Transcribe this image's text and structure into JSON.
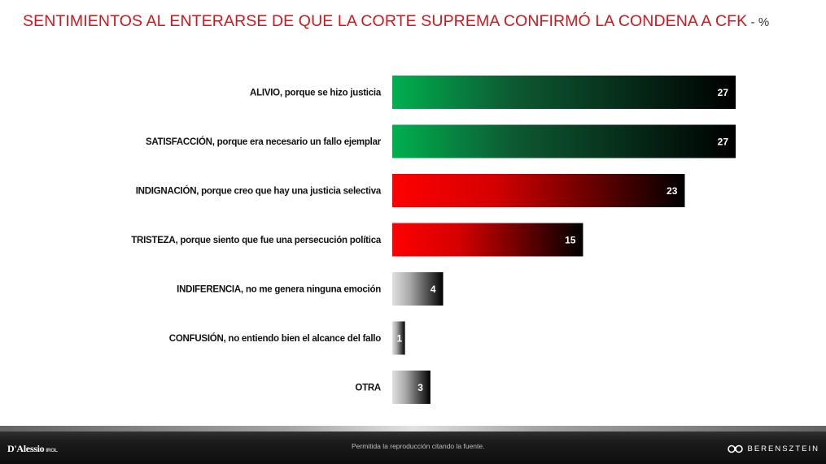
{
  "title": {
    "text": "SENTIMIENTOS AL ENTERARSE DE QUE LA CORTE SUPREMA CONFIRMÓ LA CONDENA A CFK",
    "unit": " - %"
  },
  "chart_data": {
    "type": "bar",
    "orientation": "horizontal",
    "categories": [
      "ALIVIO, porque se hizo justicia",
      "SATISFACCIÓN, porque era necesario un fallo ejemplar",
      "INDIGNACIÓN, porque creo que hay una justicia selectiva",
      "TRISTEZA, porque siento que fue una persecución política",
      "INDIFERENCIA, no me genera ninguna emoción",
      "CONFUSIÓN, no entiendo bien el alcance del fallo",
      "OTRA"
    ],
    "values": [
      27,
      27,
      23,
      15,
      4,
      1,
      3
    ],
    "value_labels": [
      "27",
      "27",
      "23",
      "15",
      "4",
      "1",
      "3"
    ],
    "bar_groups": [
      "green",
      "green",
      "red",
      "red",
      "gray",
      "gray",
      "gray"
    ],
    "colors": {
      "green": [
        "#00b050",
        "#0d5a32",
        "#000000"
      ],
      "red": [
        "#ff0000",
        "#d50000",
        "#000000"
      ],
      "gray": [
        "#e0e0e0",
        "#a8a8a8",
        "#000000"
      ]
    },
    "xlim": [
      0,
      27
    ],
    "grid": false,
    "legend": "none"
  },
  "footer": {
    "note": "Permitida la reproducción citando la fuente.",
    "logo_left": "D'Alessio",
    "logo_left_sub": "IROL",
    "logo_right": "BERENSZTEIN"
  }
}
